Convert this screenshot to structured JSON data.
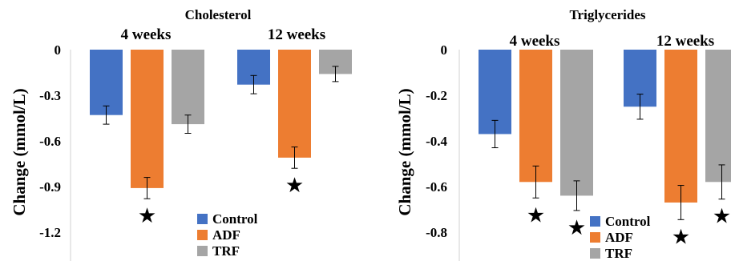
{
  "colors": {
    "Control": "#4472C4",
    "ADF": "#ED7D31",
    "TRF": "#A5A5A5"
  },
  "legend": [
    "Control",
    "ADF",
    "TRF"
  ],
  "chart_data": [
    {
      "type": "bar",
      "title": "Cholesterol",
      "ylabel": "Change (mmol/L)",
      "groups": [
        "4 weeks",
        "12 weeks"
      ],
      "yticks": [
        "0",
        "-0.3",
        "-0.6",
        "-0.9",
        "-1.2"
      ],
      "ylim": [
        -1.2,
        0
      ],
      "series": [
        {
          "name": "Control",
          "values": [
            -0.43,
            -0.23
          ],
          "errors": [
            0.06,
            0.06
          ]
        },
        {
          "name": "ADF",
          "values": [
            -0.91,
            -0.71
          ],
          "errors": [
            0.07,
            0.07
          ]
        },
        {
          "name": "TRF",
          "values": [
            -0.49,
            -0.16
          ],
          "errors": [
            0.06,
            0.05
          ]
        }
      ],
      "significance": [
        {
          "series": "ADF",
          "group": "4 weeks",
          "symbol": "★"
        },
        {
          "series": "ADF",
          "group": "12 weeks",
          "symbol": "★"
        }
      ]
    },
    {
      "type": "bar",
      "title": "Triglycerides",
      "ylabel": "Change (mmol/L)",
      "groups": [
        "4 weeks",
        "12 weeks"
      ],
      "yticks": [
        "0",
        "-0.2",
        "-0.4",
        "-0.6",
        "-0.8"
      ],
      "ylim": [
        -0.8,
        0
      ],
      "series": [
        {
          "name": "Control",
          "values": [
            -0.37,
            -0.25
          ],
          "errors": [
            0.06,
            0.055
          ]
        },
        {
          "name": "ADF",
          "values": [
            -0.58,
            -0.67
          ],
          "errors": [
            0.07,
            0.075
          ]
        },
        {
          "name": "TRF",
          "values": [
            -0.64,
            -0.58
          ],
          "errors": [
            0.065,
            0.075
          ]
        }
      ],
      "significance": [
        {
          "series": "ADF",
          "group": "4 weeks",
          "symbol": "★"
        },
        {
          "series": "TRF",
          "group": "4 weeks",
          "symbol": "★"
        },
        {
          "series": "ADF",
          "group": "12 weeks",
          "symbol": "★"
        },
        {
          "series": "TRF",
          "group": "12 weeks",
          "symbol": "★"
        }
      ]
    }
  ]
}
